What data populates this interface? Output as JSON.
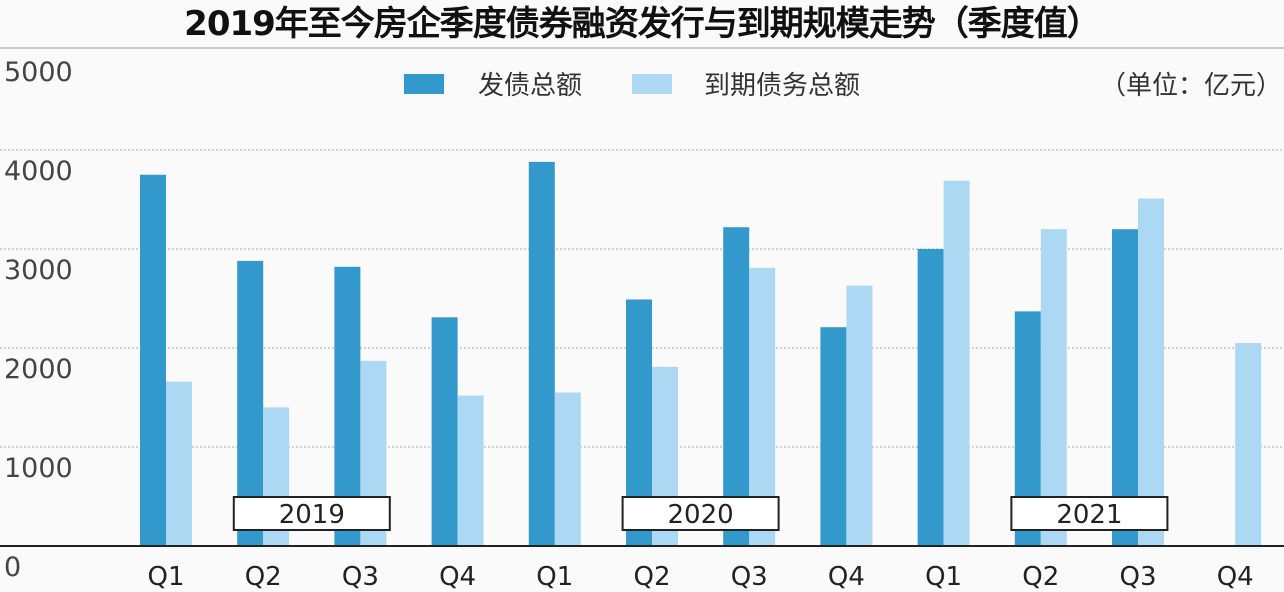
{
  "chart_data": {
    "type": "bar",
    "title": "2019年至今房企季度债券融资发行与到期规模走势（季度值）",
    "unit_label": "（单位：亿元）",
    "categories": [
      "Q1",
      "Q2",
      "Q3",
      "Q4",
      "Q1",
      "Q2",
      "Q3",
      "Q4",
      "Q1",
      "Q2",
      "Q3",
      "Q4"
    ],
    "years": [
      "2019",
      "2020",
      "2021"
    ],
    "series": [
      {
        "name": "发债总额",
        "color": "#3399cc",
        "values": [
          3750,
          2880,
          2820,
          2310,
          3880,
          2490,
          3220,
          2210,
          3000,
          2370,
          3200,
          null
        ]
      },
      {
        "name": "到期债务总额",
        "color": "#acd8f3",
        "values": [
          1660,
          1400,
          1870,
          1520,
          1550,
          1810,
          2810,
          2630,
          3690,
          3200,
          3510,
          2050
        ]
      }
    ],
    "ylim": [
      0,
      5000
    ],
    "yticks": [
      0,
      1000,
      2000,
      3000,
      4000,
      5000
    ],
    "grid": true,
    "legend": "top-center"
  }
}
